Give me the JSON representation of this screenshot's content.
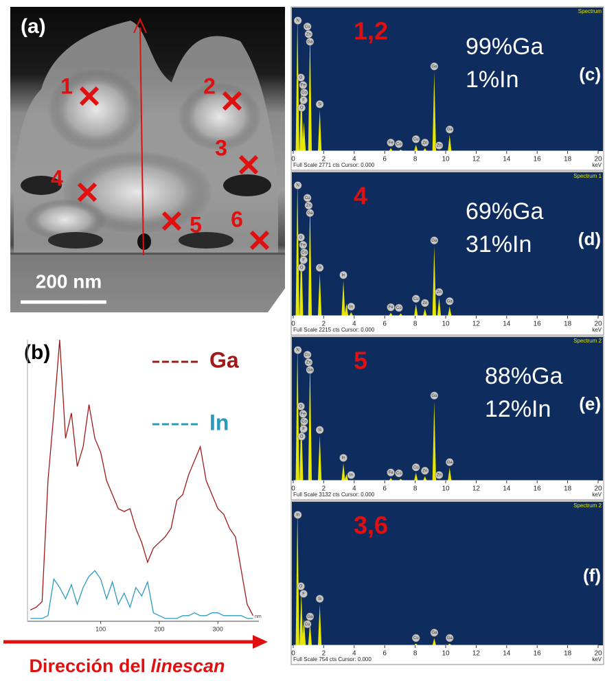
{
  "panel_a": {
    "label": "(a)",
    "scale_bar": "200 nm",
    "points": [
      "1",
      "2",
      "3",
      "4",
      "5",
      "6"
    ]
  },
  "chart_data": [
    {
      "type": "line",
      "label": "(b)",
      "x": [
        -20,
        -10,
        0,
        10,
        20,
        30,
        40,
        50,
        60,
        70,
        80,
        90,
        100,
        110,
        120,
        130,
        140,
        150,
        160,
        170,
        180,
        190,
        200,
        210,
        220,
        230,
        240,
        250,
        260,
        270,
        280,
        290,
        300,
        310,
        320,
        330,
        340,
        350,
        360
      ],
      "series": [
        {
          "name": "Ga",
          "color": "#a01818",
          "values": [
            4,
            5,
            7,
            50,
            74,
            100,
            65,
            74,
            55,
            62,
            77,
            65,
            60,
            50,
            45,
            40,
            39,
            40,
            33,
            28,
            21,
            26,
            28,
            30,
            33,
            43,
            45,
            52,
            57,
            62,
            50,
            45,
            40,
            38,
            33,
            30,
            18,
            6,
            2
          ]
        },
        {
          "name": "In",
          "color": "#2a9ac0",
          "values": [
            1,
            1,
            1,
            2,
            15,
            12,
            8,
            13,
            6,
            12,
            16,
            18,
            15,
            8,
            14,
            6,
            10,
            5,
            12,
            9,
            14,
            3,
            2,
            1,
            1,
            1,
            2,
            2,
            3,
            2,
            2,
            3,
            3,
            2,
            2,
            2,
            2,
            1,
            1
          ]
        }
      ],
      "xlim": [
        -25,
        370
      ],
      "xticks": [
        100,
        200,
        300
      ],
      "ylim": [
        0,
        100
      ],
      "x_unit": "nm",
      "axis_label": {
        "text": "Dirección del ",
        "emphasis": "linescan"
      }
    },
    {
      "type": "spectrum",
      "label": "(c)",
      "title": "Spectrum",
      "point": "1,2",
      "composition": [
        "99%Ga",
        "1%In"
      ],
      "footer": "Full Scale 2771 cts Cursor: 0.000",
      "x_unit": "keV",
      "color": "#e6e600",
      "xlim": [
        0,
        20
      ],
      "xticks": [
        0,
        2,
        4,
        6,
        8,
        10,
        12,
        14,
        16,
        18,
        20
      ],
      "ylim": [
        0,
        2771
      ],
      "peaks": {
        "keV": [
          0.28,
          0.53,
          0.7,
          1.1,
          1.74,
          6.4,
          7.05,
          8.05,
          8.64,
          9.25,
          10.26
        ],
        "cts": [
          2771,
          1400,
          600,
          2450,
          850,
          60,
          30,
          130,
          60,
          1630,
          330
        ]
      },
      "peak_labels": {
        "text": [
          "N",
          "O",
          "Cu",
          "Zn",
          "Ga",
          "Fe",
          "Co",
          "F",
          "O",
          "Si",
          "Co",
          "Fe",
          "Cu",
          "Zn",
          "Ga",
          "Zn",
          "Ga"
        ],
        "keV": [
          0.3,
          0.5,
          0.93,
          1.01,
          1.1,
          0.65,
          0.72,
          0.68,
          0.55,
          1.74,
          6.93,
          6.4,
          8.05,
          8.64,
          9.25,
          9.57,
          10.26
        ]
      }
    },
    {
      "type": "spectrum",
      "label": "(d)",
      "title": "Spectrum 1",
      "point": "4",
      "composition": [
        "69%Ga",
        "31%In"
      ],
      "footer": "Full Scale 2215 cts Cursor: 0.000",
      "x_unit": "keV",
      "color": "#e6e600",
      "xlim": [
        0,
        20
      ],
      "xticks": [
        0,
        2,
        4,
        6,
        8,
        10,
        12,
        14,
        16,
        18,
        20
      ],
      "ylim": [
        0,
        2215
      ],
      "peaks": {
        "keV": [
          0.28,
          0.53,
          1.1,
          1.74,
          3.29,
          3.49,
          3.8,
          6.4,
          7.05,
          8.05,
          8.64,
          9.25,
          9.57,
          10.26
        ],
        "cts": [
          2215,
          1200,
          1850,
          700,
          580,
          200,
          60,
          50,
          40,
          190,
          120,
          1150,
          300,
          150
        ]
      },
      "peak_labels": {
        "text": [
          "N",
          "O",
          "Cu",
          "Zn",
          "Ga",
          "Fe",
          "Co",
          "F",
          "O",
          "Si",
          "In",
          "In",
          "Co",
          "Fe",
          "Cu",
          "Zn",
          "Ga",
          "Zn",
          "Ga"
        ],
        "keV": [
          0.3,
          0.5,
          0.93,
          1.01,
          1.1,
          0.65,
          0.72,
          0.68,
          0.55,
          1.74,
          3.29,
          3.8,
          6.93,
          6.4,
          8.05,
          8.64,
          9.25,
          9.57,
          10.26
        ]
      }
    },
    {
      "type": "spectrum",
      "label": "(e)",
      "title": "Spectrum 2",
      "point": "5",
      "composition": [
        "88%Ga",
        "12%In"
      ],
      "footer": "Full Scale 3132 cts Cursor: 0.000",
      "x_unit": "keV",
      "color": "#e6e600",
      "xlim": [
        0,
        20
      ],
      "xticks": [
        0,
        2,
        4,
        6,
        8,
        10,
        12,
        14,
        16,
        18,
        20
      ],
      "ylim": [
        0,
        3132
      ],
      "peaks": {
        "keV": [
          0.28,
          0.53,
          1.1,
          1.74,
          3.29,
          3.49,
          6.4,
          7.05,
          8.05,
          8.64,
          9.25,
          10.26
        ],
        "cts": [
          3132,
          1600,
          2800,
          1050,
          400,
          150,
          60,
          40,
          180,
          100,
          1850,
          300
        ]
      },
      "peak_labels": {
        "text": [
          "N",
          "O",
          "Cu",
          "Zn",
          "Ga",
          "Fe",
          "Co",
          "F",
          "O",
          "Si",
          "In",
          "In",
          "Fe",
          "Co",
          "Cu",
          "Zn",
          "Ga",
          "Zn",
          "Ga"
        ],
        "keV": [
          0.3,
          0.5,
          0.93,
          1.01,
          1.1,
          0.65,
          0.72,
          0.68,
          0.55,
          1.74,
          3.29,
          3.8,
          6.4,
          6.93,
          8.05,
          8.64,
          9.25,
          9.57,
          10.26
        ]
      }
    },
    {
      "type": "spectrum",
      "label": "(f)",
      "title": "Spectrum 2",
      "point": "3,6",
      "footer": "Full Scale 754 cts Cursor: 0.000",
      "x_unit": "keV",
      "color": "#e6e600",
      "xlim": [
        0,
        20
      ],
      "xticks": [
        0,
        2,
        4,
        6,
        8,
        10,
        12,
        14,
        16,
        18,
        20
      ],
      "ylim": [
        0,
        754
      ],
      "peaks": {
        "keV": [
          0.28,
          0.53,
          0.7,
          1.1,
          1.74,
          8.05,
          9.25,
          10.26
        ],
        "cts": [
          754,
          300,
          150,
          130,
          230,
          10,
          40,
          10
        ]
      },
      "peak_labels": {
        "text": [
          "In",
          "Ga",
          "O",
          "Cu",
          "F",
          "Si",
          "Cu",
          "Ga",
          "Ga"
        ],
        "keV": [
          0.3,
          1.1,
          0.5,
          0.93,
          0.68,
          1.74,
          8.05,
          9.25,
          10.26
        ]
      }
    }
  ]
}
